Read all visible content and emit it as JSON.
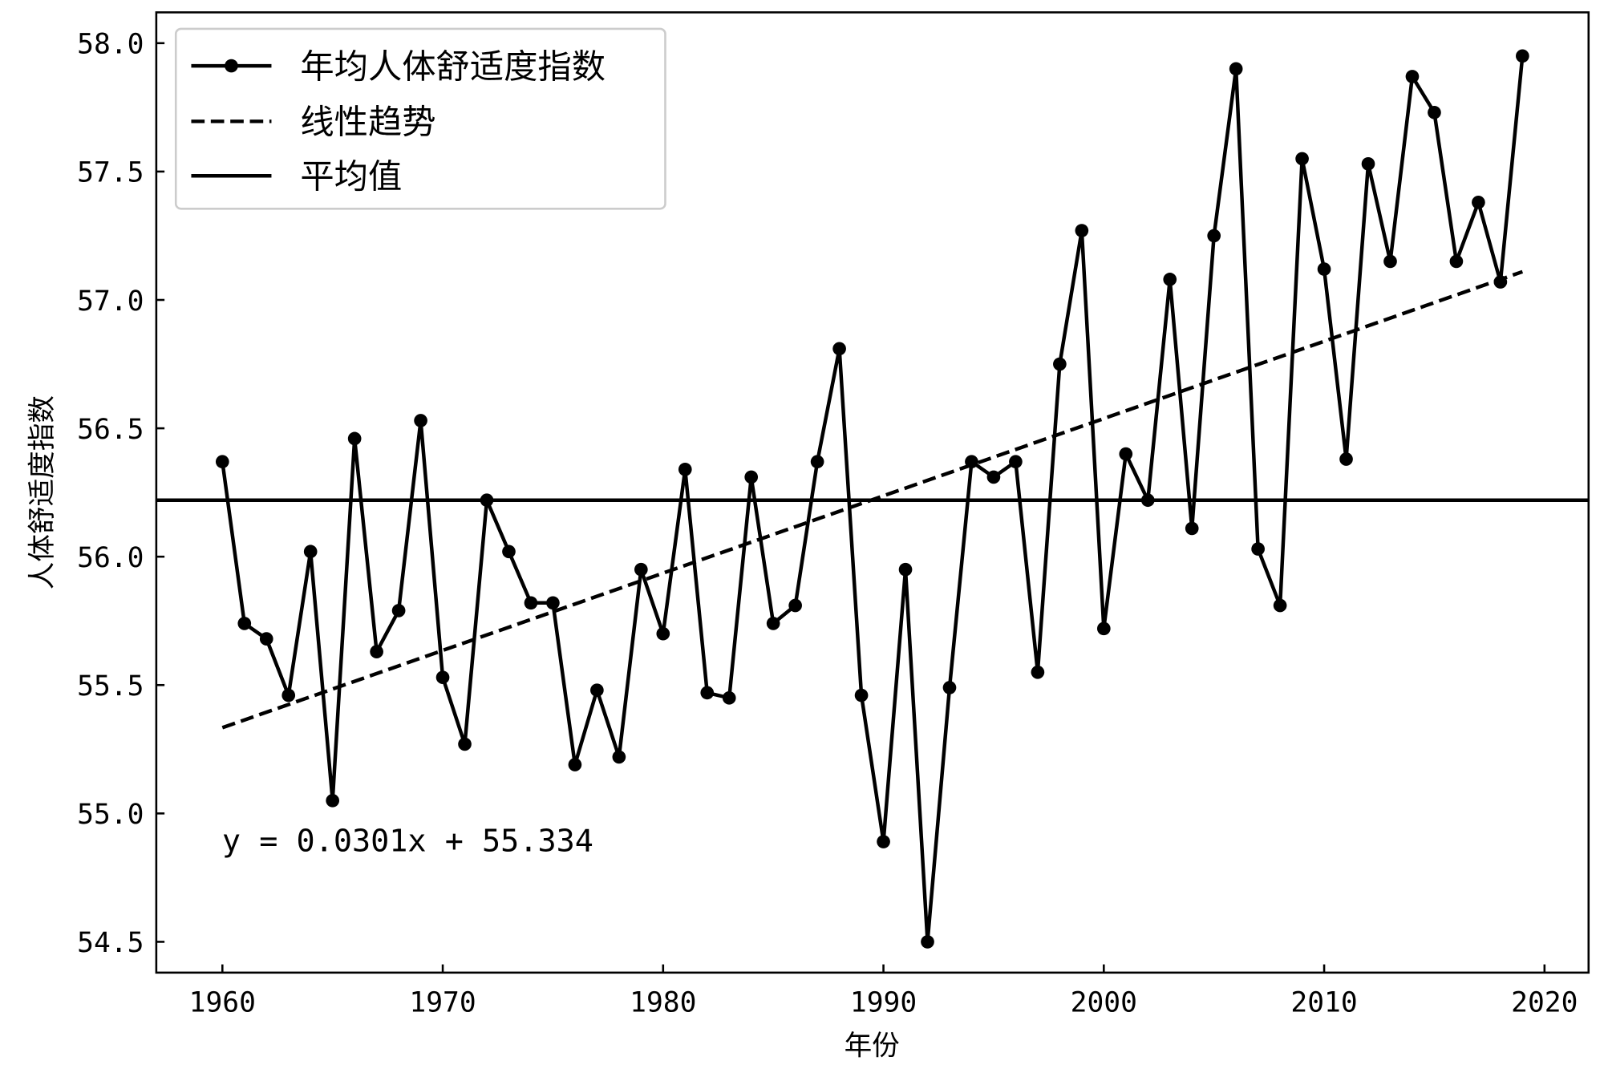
{
  "chart_data": {
    "type": "line",
    "xlabel": "年份",
    "ylabel": "人体舒适度指数",
    "xlim": [
      1957,
      2022
    ],
    "ylim": [
      54.38,
      58.12
    ],
    "xticks": [
      1960,
      1970,
      1980,
      1990,
      2000,
      2010,
      2020
    ],
    "yticks": [
      "54.5",
      "55.0",
      "55.5",
      "56.0",
      "56.5",
      "57.0",
      "57.5",
      "58.0"
    ],
    "grid": false,
    "legend_placement": "top-left",
    "legend": [
      "年均人体舒适度指数",
      "线性趋势",
      "平均值"
    ],
    "annotation": "y = 0.0301x + 55.334",
    "color": "#000000",
    "x": [
      1960,
      1961,
      1962,
      1963,
      1964,
      1965,
      1966,
      1967,
      1968,
      1969,
      1970,
      1971,
      1972,
      1973,
      1974,
      1975,
      1976,
      1977,
      1978,
      1979,
      1980,
      1981,
      1982,
      1983,
      1984,
      1985,
      1986,
      1987,
      1988,
      1989,
      1990,
      1991,
      1992,
      1993,
      1994,
      1995,
      1996,
      1997,
      1998,
      1999,
      2000,
      2001,
      2002,
      2003,
      2004,
      2005,
      2006,
      2007,
      2008,
      2009,
      2010,
      2011,
      2012,
      2013,
      2014,
      2015,
      2016,
      2017,
      2018,
      2019
    ],
    "series": [
      {
        "name": "年均人体舒适度指数",
        "style": "line-marker",
        "values": [
          56.37,
          55.74,
          55.68,
          55.46,
          56.02,
          55.05,
          56.46,
          55.63,
          55.79,
          56.53,
          55.53,
          55.27,
          56.22,
          56.02,
          55.82,
          55.82,
          55.19,
          55.48,
          55.22,
          55.95,
          55.7,
          56.34,
          55.47,
          55.45,
          56.31,
          55.74,
          55.81,
          56.37,
          56.81,
          55.46,
          54.89,
          55.95,
          54.5,
          55.49,
          56.37,
          56.31,
          56.37,
          55.55,
          56.75,
          57.27,
          55.72,
          56.4,
          56.22,
          57.08,
          56.11,
          57.25,
          57.9,
          56.03,
          55.81,
          57.55,
          57.12,
          56.38,
          57.53,
          57.15,
          57.87,
          57.73,
          57.15,
          57.38,
          57.07,
          57.95
        ]
      },
      {
        "name": "线性趋势",
        "style": "dashed",
        "slope": 0.0301,
        "intercept": 55.334
      },
      {
        "name": "平均值",
        "style": "solid",
        "value": 56.22
      }
    ]
  }
}
